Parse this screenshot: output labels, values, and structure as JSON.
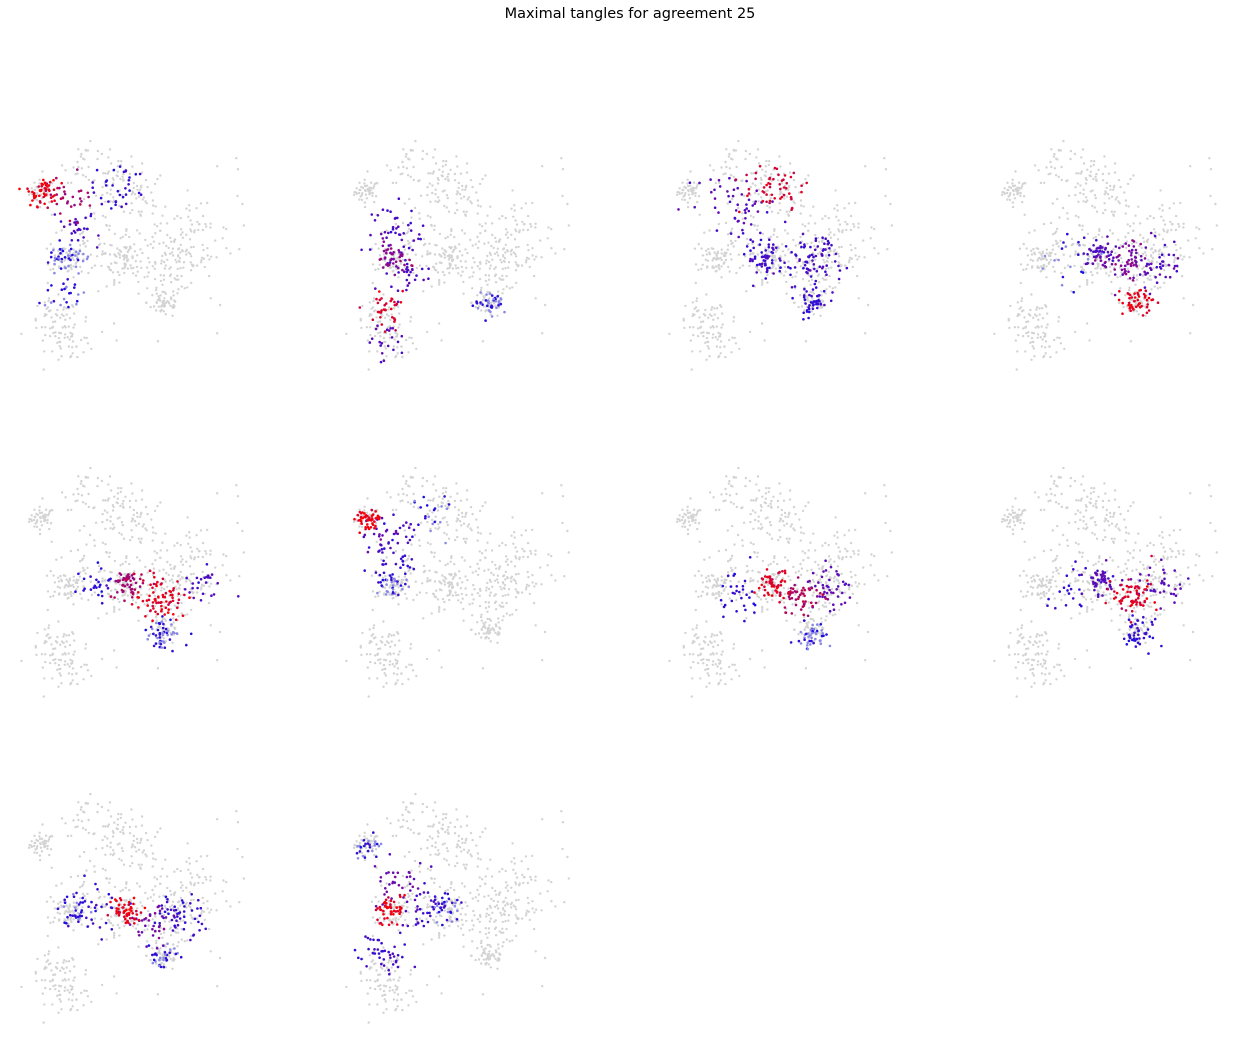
{
  "title": "Maximal tangles for agreement 25",
  "chart_data": {
    "type": "scatter",
    "title": "Maximal tangles for agreement 25",
    "layout": {
      "rows": 3,
      "cols": 4,
      "panels": 10
    },
    "axes_visible": false,
    "grid": false,
    "legend": "none",
    "xlim": [
      0,
      1
    ],
    "ylim": [
      0,
      1
    ],
    "colors": {
      "background_point": "#d3d3d3",
      "low_membership": "#1a0fe6",
      "mid_membership": "#7d0aa0",
      "high_membership": "#ff0000",
      "faint_membership": "#8a8ae6"
    },
    "base_clusters": [
      {
        "name": "A",
        "cx": 0.08,
        "cy": 0.78,
        "spread": 0.025,
        "n": 45
      },
      {
        "name": "B",
        "cx": 0.39,
        "cy": 0.81,
        "spread": 0.06,
        "n": 60
      },
      {
        "name": "C",
        "cx": 0.18,
        "cy": 0.5,
        "spread": 0.035,
        "n": 55
      },
      {
        "name": "D",
        "cx": 0.42,
        "cy": 0.5,
        "spread": 0.05,
        "n": 85
      },
      {
        "name": "E",
        "cx": 0.62,
        "cy": 0.48,
        "spread": 0.06,
        "n": 90
      },
      {
        "name": "F",
        "cx": 0.57,
        "cy": 0.31,
        "spread": 0.035,
        "n": 55
      },
      {
        "name": "G",
        "cx": 0.13,
        "cy": 0.22,
        "spread": 0.05,
        "n": 50
      },
      {
        "name": "H",
        "cx": 0.2,
        "cy": 0.15,
        "spread": 0.05,
        "n": 40
      },
      {
        "name": "I",
        "cx": 0.25,
        "cy": 0.9,
        "spread": 0.04,
        "n": 25
      },
      {
        "name": "J",
        "cx": 0.3,
        "cy": 0.55,
        "spread": 0.08,
        "n": 50
      },
      {
        "name": "K",
        "cx": 0.7,
        "cy": 0.6,
        "spread": 0.08,
        "n": 40
      },
      {
        "name": "L",
        "cx": 0.5,
        "cy": 0.7,
        "spread": 0.1,
        "n": 40
      }
    ],
    "panels": [
      {
        "highlights": [
          {
            "cx": 0.08,
            "cy": 0.78,
            "spread": 0.03,
            "n": 55,
            "level": 0.92
          },
          {
            "cx": 0.18,
            "cy": 0.76,
            "spread": 0.05,
            "n": 30,
            "level": 0.65
          },
          {
            "cx": 0.22,
            "cy": 0.63,
            "spread": 0.04,
            "n": 25,
            "level": 0.25
          },
          {
            "cx": 0.18,
            "cy": 0.5,
            "spread": 0.035,
            "n": 45,
            "level": 0.08
          },
          {
            "cx": 0.38,
            "cy": 0.8,
            "spread": 0.05,
            "n": 35,
            "level": 0.12
          },
          {
            "cx": 0.16,
            "cy": 0.33,
            "spread": 0.05,
            "n": 25,
            "level": 0.08
          }
        ]
      },
      {
        "highlights": [
          {
            "cx": 0.18,
            "cy": 0.5,
            "spread": 0.03,
            "n": 45,
            "level": 0.55
          },
          {
            "cx": 0.15,
            "cy": 0.29,
            "spread": 0.04,
            "n": 35,
            "level": 0.85
          },
          {
            "cx": 0.2,
            "cy": 0.62,
            "spread": 0.05,
            "n": 40,
            "level": 0.25
          },
          {
            "cx": 0.26,
            "cy": 0.42,
            "spread": 0.05,
            "n": 30,
            "level": 0.25
          },
          {
            "cx": 0.14,
            "cy": 0.15,
            "spread": 0.04,
            "n": 20,
            "level": 0.3
          },
          {
            "cx": 0.57,
            "cy": 0.31,
            "spread": 0.03,
            "n": 40,
            "level": 0.08
          }
        ]
      },
      {
        "highlights": [
          {
            "cx": 0.42,
            "cy": 0.8,
            "spread": 0.06,
            "n": 50,
            "level": 0.85
          },
          {
            "cx": 0.3,
            "cy": 0.7,
            "spread": 0.06,
            "n": 30,
            "level": 0.3
          },
          {
            "cx": 0.38,
            "cy": 0.5,
            "spread": 0.04,
            "n": 60,
            "level": 0.2
          },
          {
            "cx": 0.55,
            "cy": 0.48,
            "spread": 0.06,
            "n": 80,
            "level": 0.22
          },
          {
            "cx": 0.57,
            "cy": 0.31,
            "spread": 0.03,
            "n": 40,
            "level": 0.12
          },
          {
            "cx": 0.2,
            "cy": 0.78,
            "spread": 0.05,
            "n": 20,
            "level": 0.3
          }
        ]
      },
      {
        "highlights": [
          {
            "cx": 0.42,
            "cy": 0.52,
            "spread": 0.03,
            "n": 45,
            "level": 0.3
          },
          {
            "cx": 0.52,
            "cy": 0.48,
            "spread": 0.05,
            "n": 60,
            "level": 0.5
          },
          {
            "cx": 0.57,
            "cy": 0.31,
            "spread": 0.03,
            "n": 50,
            "level": 0.92
          },
          {
            "cx": 0.65,
            "cy": 0.48,
            "spread": 0.05,
            "n": 40,
            "level": 0.3
          },
          {
            "cx": 0.3,
            "cy": 0.48,
            "spread": 0.05,
            "n": 20,
            "level": 0.08
          }
        ]
      },
      {
        "highlights": [
          {
            "cx": 0.42,
            "cy": 0.5,
            "spread": 0.03,
            "n": 55,
            "level": 0.65
          },
          {
            "cx": 0.55,
            "cy": 0.44,
            "spread": 0.05,
            "n": 75,
            "level": 0.9
          },
          {
            "cx": 0.57,
            "cy": 0.28,
            "spread": 0.03,
            "n": 50,
            "level": 0.08
          },
          {
            "cx": 0.3,
            "cy": 0.48,
            "spread": 0.05,
            "n": 25,
            "level": 0.1
          },
          {
            "cx": 0.7,
            "cy": 0.5,
            "spread": 0.05,
            "n": 25,
            "level": 0.25
          }
        ]
      },
      {
        "highlights": [
          {
            "cx": 0.08,
            "cy": 0.78,
            "spread": 0.025,
            "n": 50,
            "level": 0.95
          },
          {
            "cx": 0.18,
            "cy": 0.72,
            "spread": 0.05,
            "n": 35,
            "level": 0.3
          },
          {
            "cx": 0.2,
            "cy": 0.6,
            "spread": 0.05,
            "n": 30,
            "level": 0.15
          },
          {
            "cx": 0.18,
            "cy": 0.5,
            "spread": 0.03,
            "n": 35,
            "level": 0.08
          },
          {
            "cx": 0.35,
            "cy": 0.8,
            "spread": 0.04,
            "n": 20,
            "level": 0.08
          }
        ]
      },
      {
        "highlights": [
          {
            "cx": 0.42,
            "cy": 0.5,
            "spread": 0.03,
            "n": 50,
            "level": 0.88
          },
          {
            "cx": 0.52,
            "cy": 0.44,
            "spread": 0.04,
            "n": 50,
            "level": 0.7
          },
          {
            "cx": 0.64,
            "cy": 0.47,
            "spread": 0.05,
            "n": 45,
            "level": 0.35
          },
          {
            "cx": 0.57,
            "cy": 0.28,
            "spread": 0.03,
            "n": 45,
            "level": 0.08
          },
          {
            "cx": 0.28,
            "cy": 0.48,
            "spread": 0.05,
            "n": 30,
            "level": 0.12
          }
        ]
      },
      {
        "highlights": [
          {
            "cx": 0.42,
            "cy": 0.52,
            "spread": 0.03,
            "n": 50,
            "level": 0.3
          },
          {
            "cx": 0.55,
            "cy": 0.45,
            "spread": 0.04,
            "n": 65,
            "level": 0.88
          },
          {
            "cx": 0.57,
            "cy": 0.29,
            "spread": 0.03,
            "n": 45,
            "level": 0.12
          },
          {
            "cx": 0.66,
            "cy": 0.5,
            "spread": 0.05,
            "n": 35,
            "level": 0.3
          },
          {
            "cx": 0.3,
            "cy": 0.48,
            "spread": 0.05,
            "n": 20,
            "level": 0.12
          }
        ]
      },
      {
        "highlights": [
          {
            "cx": 0.42,
            "cy": 0.5,
            "spread": 0.03,
            "n": 55,
            "level": 0.93
          },
          {
            "cx": 0.52,
            "cy": 0.43,
            "spread": 0.04,
            "n": 35,
            "level": 0.45
          },
          {
            "cx": 0.62,
            "cy": 0.48,
            "spread": 0.05,
            "n": 50,
            "level": 0.15
          },
          {
            "cx": 0.28,
            "cy": 0.5,
            "spread": 0.06,
            "n": 40,
            "level": 0.15
          },
          {
            "cx": 0.57,
            "cy": 0.3,
            "spread": 0.03,
            "n": 30,
            "level": 0.08
          },
          {
            "cx": 0.2,
            "cy": 0.5,
            "spread": 0.03,
            "n": 20,
            "level": 0.08
          }
        ]
      },
      {
        "highlights": [
          {
            "cx": 0.17,
            "cy": 0.5,
            "spread": 0.03,
            "n": 50,
            "level": 0.92
          },
          {
            "cx": 0.21,
            "cy": 0.62,
            "spread": 0.05,
            "n": 35,
            "level": 0.4
          },
          {
            "cx": 0.14,
            "cy": 0.32,
            "spread": 0.05,
            "n": 40,
            "level": 0.2
          },
          {
            "cx": 0.3,
            "cy": 0.5,
            "spread": 0.05,
            "n": 35,
            "level": 0.2
          },
          {
            "cx": 0.4,
            "cy": 0.52,
            "spread": 0.03,
            "n": 30,
            "level": 0.08
          },
          {
            "cx": 0.08,
            "cy": 0.78,
            "spread": 0.03,
            "n": 25,
            "level": 0.08
          }
        ]
      }
    ]
  }
}
